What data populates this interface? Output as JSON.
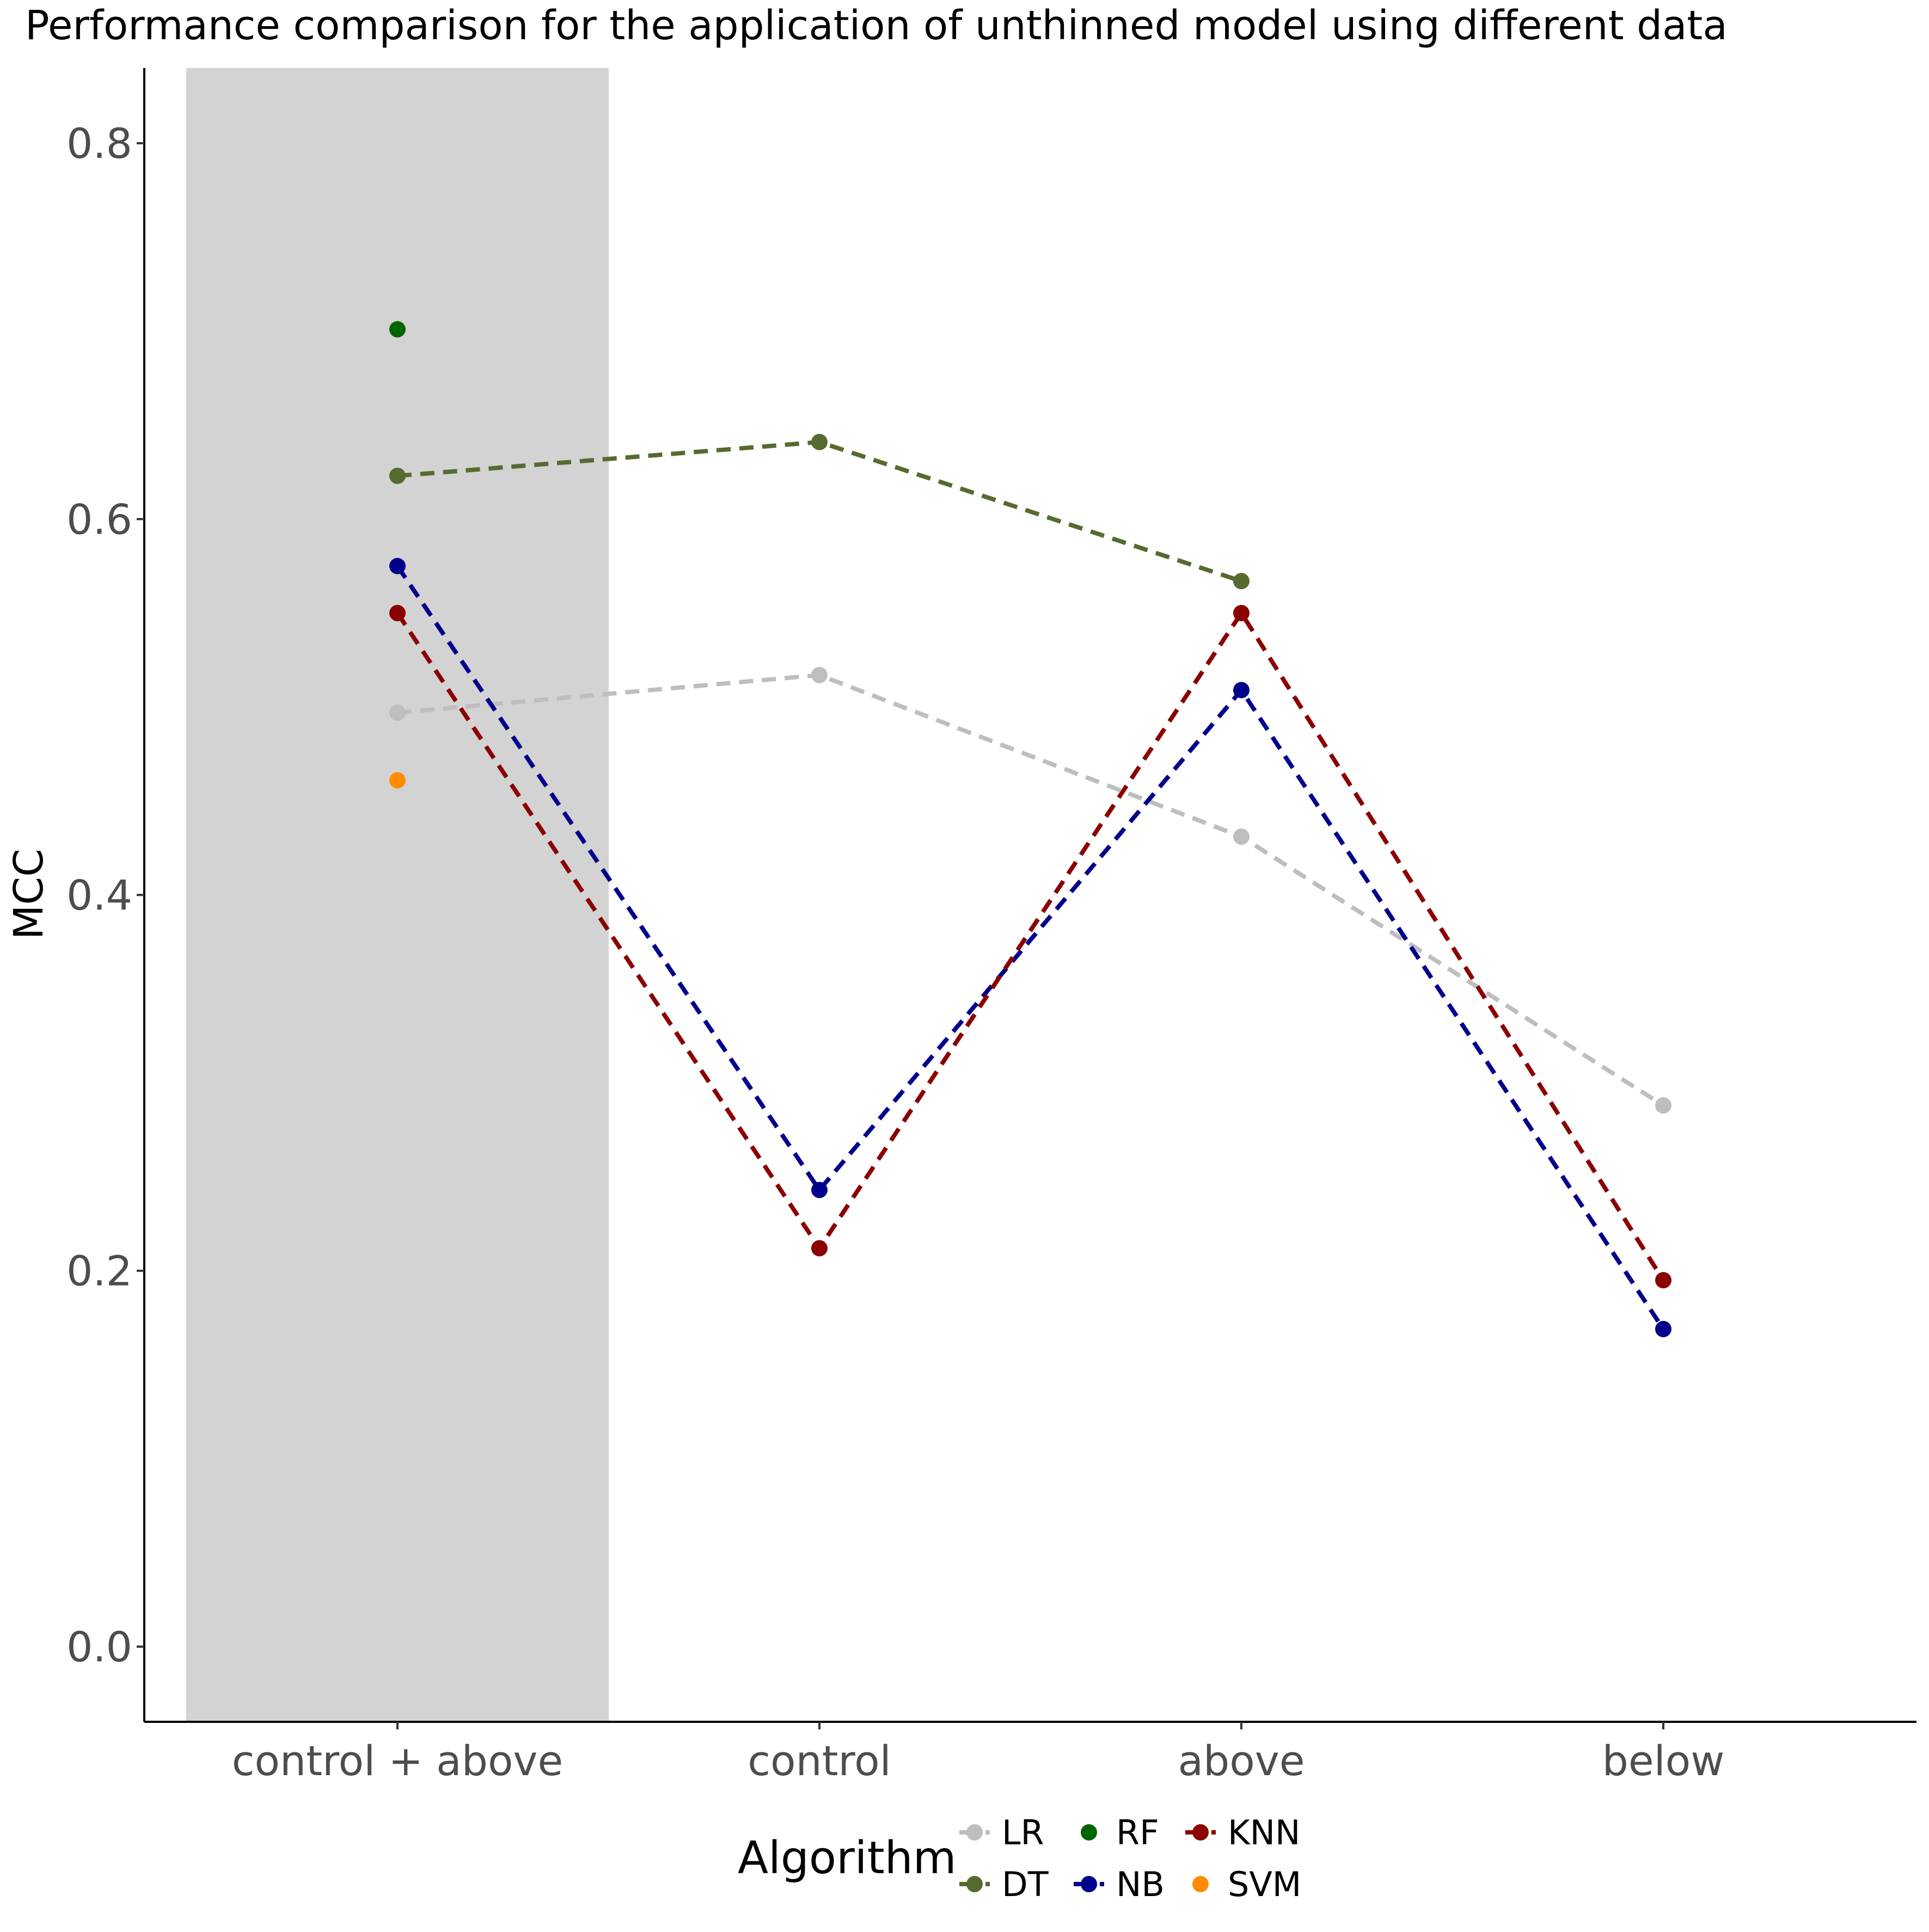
{
  "chart_data": {
    "type": "line",
    "title": "Performance comparison for the application of unthinned model using different data",
    "xlabel": "",
    "ylabel": "MCC",
    "categories": [
      "control + above",
      "control",
      "above",
      "below"
    ],
    "ylim": [
      -0.04,
      0.84
    ],
    "yticks": [
      0.0,
      0.2,
      0.4,
      0.6,
      0.8
    ],
    "ytick_labels": [
      "0.0",
      "0.2",
      "0.4",
      "0.6",
      "0.8"
    ],
    "highlight_category": "control + above",
    "highlight_color": "#d3d3d3",
    "grid": false,
    "legend": {
      "title": "Algorithm",
      "position": "bottom"
    },
    "series": [
      {
        "name": "LR",
        "color": "#bebebe",
        "line": true,
        "values": [
          0.497,
          0.517,
          0.431,
          0.288
        ]
      },
      {
        "name": "DT",
        "color": "#556b2f",
        "line": true,
        "values": [
          0.623,
          0.641,
          0.567,
          null
        ]
      },
      {
        "name": "RF",
        "color": "#006400",
        "line": false,
        "values": [
          0.701,
          null,
          null,
          null
        ]
      },
      {
        "name": "NB",
        "color": "#00008b",
        "line": true,
        "values": [
          0.575,
          0.243,
          0.509,
          0.169
        ]
      },
      {
        "name": "KNN",
        "color": "#8b0000",
        "line": true,
        "values": [
          0.55,
          0.212,
          0.55,
          0.195
        ]
      },
      {
        "name": "SVM",
        "color": "#ff8c00",
        "line": false,
        "values": [
          0.461,
          null,
          null,
          null
        ]
      }
    ]
  }
}
